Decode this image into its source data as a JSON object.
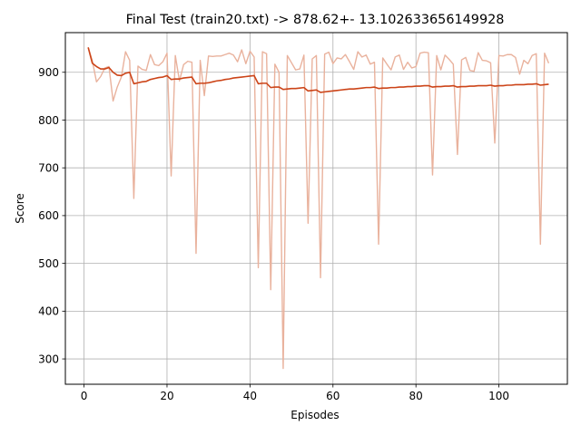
{
  "chart_data": {
    "type": "line",
    "title": "Final Test (train20.txt) -> 878.62+- 13.102633656149928",
    "xlabel": "Episodes",
    "ylabel": "Score",
    "xlim": [
      -4.5,
      116.5
    ],
    "ylim": [
      247,
      983
    ],
    "xticks": [
      0,
      20,
      40,
      60,
      80,
      100
    ],
    "yticks": [
      300,
      400,
      500,
      600,
      700,
      800,
      900
    ],
    "grid": true,
    "colors": {
      "raw": "#e9b29d",
      "mean": "#cc4418"
    },
    "series": [
      {
        "key": "raw",
        "values": [
          952,
          924,
          880,
          891,
          909,
          912,
          840,
          869,
          890,
          943,
          925,
          636,
          913,
          906,
          904,
          937,
          916,
          914,
          922,
          940,
          683,
          935,
          882,
          916,
          923,
          921,
          521,
          925,
          851,
          934,
          933,
          934,
          934,
          937,
          940,
          936,
          922,
          947,
          918,
          944,
          932,
          491,
          943,
          939,
          445,
          917,
          900,
          280,
          935,
          920,
          905,
          907,
          936,
          584,
          928,
          935,
          470,
          938,
          942,
          918,
          930,
          928,
          937,
          922,
          906,
          943,
          932,
          936,
          917,
          921,
          540,
          930,
          917,
          905,
          932,
          936,
          906,
          921,
          909,
          912,
          940,
          942,
          941,
          685,
          935,
          905,
          936,
          927,
          917,
          728,
          926,
          931,
          904,
          902,
          941,
          925,
          924,
          920,
          752,
          935,
          934,
          937,
          937,
          931,
          896,
          925,
          918,
          935,
          939,
          540,
          940,
          919
        ]
      },
      {
        "key": "mean",
        "values": [
          952,
          919,
          912,
          907,
          907,
          910,
          900,
          894,
          893,
          898,
          900,
          876,
          878,
          880,
          881,
          885,
          887,
          889,
          890,
          893,
          885,
          886,
          886,
          888,
          889,
          890,
          876,
          877,
          877,
          878,
          880,
          882,
          883,
          885,
          886,
          888,
          889,
          890,
          891,
          892,
          893,
          876,
          877,
          877,
          868,
          869,
          869,
          864,
          865,
          866,
          866,
          867,
          868,
          861,
          862,
          863,
          858,
          859,
          860,
          861,
          862,
          863,
          864,
          865,
          865,
          866,
          867,
          868,
          868,
          869,
          866,
          867,
          867,
          868,
          868,
          869,
          869,
          870,
          870,
          871,
          871,
          872,
          872,
          869,
          870,
          870,
          871,
          871,
          872,
          869,
          870,
          870,
          871,
          871,
          872,
          872,
          872,
          873,
          871,
          872,
          872,
          873,
          873,
          874,
          874,
          874,
          875,
          875,
          876,
          873,
          874,
          875
        ]
      }
    ]
  }
}
